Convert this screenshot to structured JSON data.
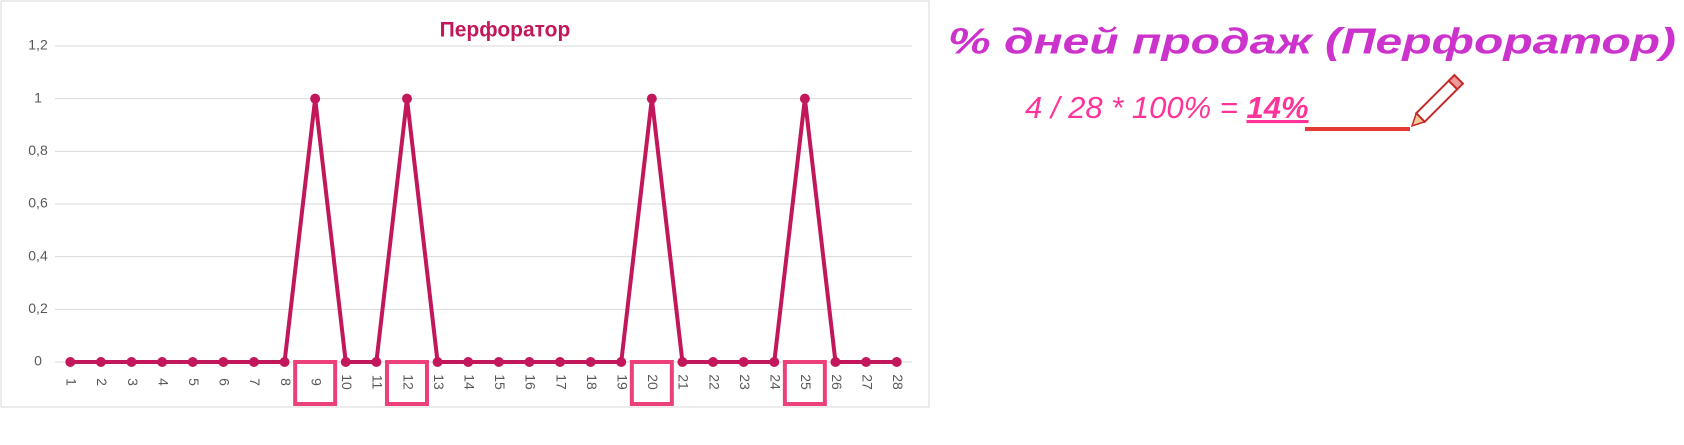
{
  "chart_data": {
    "type": "line",
    "title": "Перфоратор",
    "categories": [
      "1",
      "2",
      "3",
      "4",
      "5",
      "6",
      "7",
      "8",
      "9",
      "10",
      "11",
      "12",
      "13",
      "14",
      "15",
      "16",
      "17",
      "18",
      "19",
      "20",
      "21",
      "22",
      "23",
      "24",
      "25",
      "26",
      "27",
      "28"
    ],
    "series": [
      {
        "name": "Перфоратор",
        "color": "#c2185b",
        "values": [
          0,
          0,
          0,
          0,
          0,
          0,
          0,
          0,
          1,
          0,
          0,
          1,
          0,
          0,
          0,
          0,
          0,
          0,
          0,
          1,
          0,
          0,
          0,
          0,
          1,
          0,
          0,
          0
        ]
      }
    ],
    "ylim": [
      0,
      1.2
    ],
    "yticks": [
      0,
      {
        "value": 0.2,
        "label": "0,2"
      },
      {
        "value": 0.4,
        "label": "0,4"
      },
      {
        "value": 0.6,
        "label": "0,6"
      },
      {
        "value": 0.8,
        "label": "0,8"
      },
      1,
      {
        "value": 1.2,
        "label": "1,2"
      }
    ],
    "grid": true,
    "annotations": [
      "% дней продаж (Перфоратор)",
      "4 / 28 * 100% = ",
      "14%"
    ]
  }
}
